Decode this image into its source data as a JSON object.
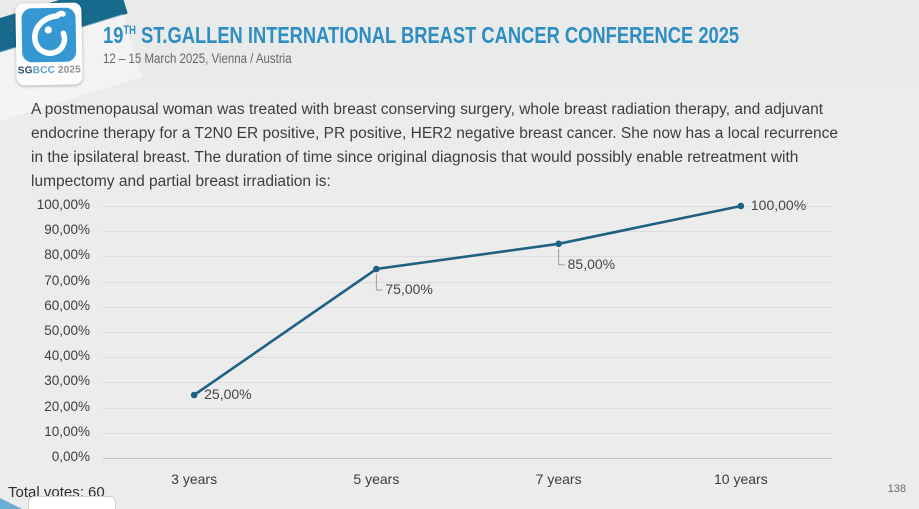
{
  "header": {
    "title_num": "19",
    "title_sup": "TH",
    "title_rest": " ST.GALLEN INTERNATIONAL BREAST CANCER CONFERENCE 2025",
    "subtitle": "12 – 15 March 2025, Vienna / Austria",
    "logo": {
      "sg": "SG",
      "bcc": "BCC",
      "year": " 2025"
    }
  },
  "question": "A postmenopausal woman was treated with breast conserving surgery, whole breast radiation therapy, and adjuvant endocrine therapy for a T2N0 ER positive, PR positive, HER2 negative breast cancer.  She now has a local recurrence in the ipsilateral breast.  The duration of time since original diagnosis that would possibly enable retreatment with lumpectomy and partial breast irradiation is:",
  "chart_data": {
    "type": "line",
    "categories": [
      "3 years",
      "5 years",
      "7 years",
      "10 years"
    ],
    "values": [
      25,
      75,
      85,
      100
    ],
    "value_labels": [
      "25,00%",
      "75,00%",
      "85,00%",
      "100,00%"
    ],
    "label_positions": [
      "right",
      "below",
      "below",
      "right"
    ],
    "y_ticks": [
      "100,00%",
      "90,00%",
      "80,00%",
      "70,00%",
      "60,00%",
      "50,00%",
      "40,00%",
      "30,00%",
      "20,00%",
      "10,00%",
      "0,00%"
    ],
    "ylim": [
      0,
      100
    ],
    "grid": true,
    "legend": "none",
    "line_color": "#1f6182",
    "leader_color": "#9b9b9b",
    "title": "",
    "xlabel": "",
    "ylabel": ""
  },
  "footer": {
    "total_votes": "Total votes: 60",
    "page_number": "138"
  },
  "colors": {
    "accent_blue": "#2e8dc1",
    "ribbon_teal": "#176a8c",
    "logo_blue": "#3598d2",
    "background": "#ececec"
  }
}
